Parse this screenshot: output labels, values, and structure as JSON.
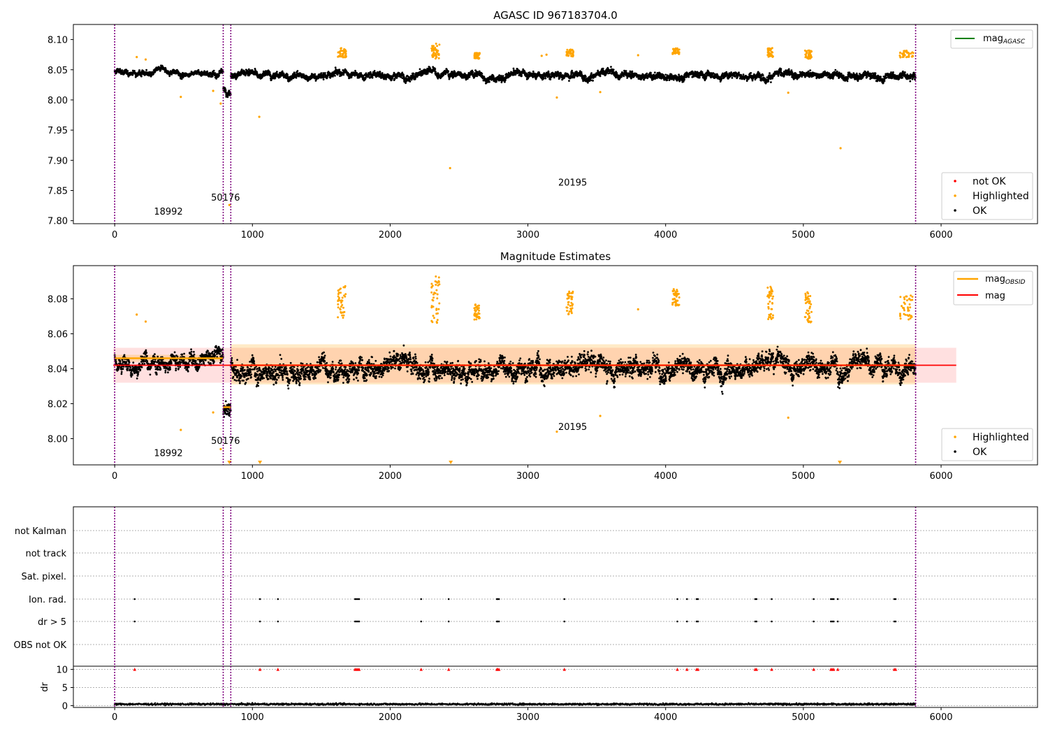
{
  "chart_data": [
    {
      "type": "scatter",
      "title": "AGASC ID 967183704.0",
      "xlim": [
        -300,
        6700
      ],
      "ylim": [
        7.795,
        8.125
      ],
      "xticks": [
        0,
        1000,
        2000,
        3000,
        4000,
        5000,
        6000
      ],
      "yticks": [
        7.8,
        7.85,
        7.9,
        7.95,
        8.0,
        8.05,
        8.1
      ],
      "ytick_labels": [
        "7.80",
        "7.85",
        "7.90",
        "7.95",
        "8.00",
        "8.05",
        "8.10"
      ],
      "obs_boundaries": [
        0,
        788,
        843,
        5815
      ],
      "obs_labels": [
        {
          "x": 285,
          "y": 7.81,
          "text": "18992"
        },
        {
          "x": 700,
          "y": 7.833,
          "text": "50176"
        },
        {
          "x": 3220,
          "y": 7.858,
          "text": "20195"
        }
      ],
      "line_legend": [
        {
          "name": "mag",
          "sub": "AGASC",
          "color": "#008000"
        }
      ],
      "point_legend": [
        {
          "name": "not OK",
          "color": "#ff0000"
        },
        {
          "name": "Highlighted",
          "color": "#ffa500"
        },
        {
          "name": "OK",
          "color": "#000000"
        }
      ],
      "series": [
        {
          "name": "OK",
          "color": "#000000",
          "segments": [
            {
              "x0": 0,
              "x1": 788,
              "level": 8.046,
              "noise": 0.006
            },
            {
              "x0": 788,
              "x1": 843,
              "level": 8.016,
              "noise": 0.006
            },
            {
              "x0": 843,
              "x1": 5815,
              "level": 8.041,
              "noise": 0.008
            }
          ]
        },
        {
          "name": "Highlighted",
          "color": "#ffa500",
          "clusters": [
            {
              "x0": 1620,
              "x1": 1680,
              "y0": 8.07,
              "y1": 8.086
            },
            {
              "x0": 2300,
              "x1": 2360,
              "y0": 8.068,
              "y1": 8.094
            },
            {
              "x0": 2610,
              "x1": 2650,
              "y0": 8.068,
              "y1": 8.078
            },
            {
              "x0": 3280,
              "x1": 3330,
              "y0": 8.072,
              "y1": 8.084
            },
            {
              "x0": 4050,
              "x1": 4100,
              "y0": 8.076,
              "y1": 8.086
            },
            {
              "x0": 4740,
              "x1": 4780,
              "y0": 8.07,
              "y1": 8.086
            },
            {
              "x0": 5010,
              "x1": 5060,
              "y0": 8.068,
              "y1": 8.084
            },
            {
              "x0": 5700,
              "x1": 5800,
              "y0": 8.07,
              "y1": 8.082
            }
          ],
          "points": [
            [
              160,
              8.071
            ],
            [
              225,
              8.067
            ],
            [
              480,
              8.005
            ],
            [
              715,
              8.015
            ],
            [
              770,
              7.994
            ],
            [
              833,
              7.826
            ],
            [
              1050,
              7.972
            ],
            [
              2435,
              7.887
            ],
            [
              3100,
              8.073
            ],
            [
              3135,
              8.075
            ],
            [
              3210,
              8.004
            ],
            [
              3525,
              8.013
            ],
            [
              3800,
              8.074
            ],
            [
              4890,
              8.012
            ],
            [
              5270,
              7.92
            ]
          ]
        }
      ]
    },
    {
      "type": "scatter",
      "title": "Magnitude Estimates",
      "xlim": [
        -300,
        6700
      ],
      "ylim": [
        7.985,
        8.099
      ],
      "xticks": [
        0,
        1000,
        2000,
        3000,
        4000,
        5000,
        6000
      ],
      "yticks": [
        8.0,
        8.02,
        8.04,
        8.06,
        8.08
      ],
      "ytick_labels": [
        "8.00",
        "8.02",
        "8.04",
        "8.06",
        "8.08"
      ],
      "obs_boundaries": [
        0,
        788,
        843,
        5815
      ],
      "obs_labels": [
        {
          "x": 285,
          "y": 7.99,
          "text": "18992"
        },
        {
          "x": 700,
          "y": 7.997,
          "text": "50176"
        },
        {
          "x": 3220,
          "y": 8.005,
          "text": "20195"
        }
      ],
      "mag": 8.042,
      "mag_band": [
        8.032,
        8.052
      ],
      "mag_obsid": [
        {
          "x0": 0,
          "x1": 788,
          "y": 8.046,
          "band": [
            8.044,
            8.048
          ]
        },
        {
          "x0": 788,
          "x1": 843,
          "y": 8.018,
          "band": [
            8.016,
            8.02
          ]
        },
        {
          "x0": 843,
          "x1": 5815,
          "y": 8.042,
          "band": [
            8.031,
            8.054
          ]
        }
      ],
      "line_legend": [
        {
          "name": "mag",
          "sub": "OBSID",
          "color": "#ffa500"
        },
        {
          "name": "mag",
          "sub": "",
          "color": "#ff0000"
        }
      ],
      "point_legend": [
        {
          "name": "Highlighted",
          "color": "#ffa500"
        },
        {
          "name": "OK",
          "color": "#000000"
        }
      ],
      "offscale_markers": [
        1055,
        2440,
        5265,
        833
      ],
      "series": [
        {
          "name": "OK",
          "color": "#000000",
          "segments": [
            {
              "x0": 0,
              "x1": 788,
              "level": 8.046,
              "noise": 0.006
            },
            {
              "x0": 788,
              "x1": 843,
              "level": 8.016,
              "noise": 0.006
            },
            {
              "x0": 843,
              "x1": 5815,
              "level": 8.041,
              "noise": 0.008
            }
          ]
        },
        {
          "name": "Highlighted",
          "color": "#ffa500",
          "clusters": [
            {
              "x0": 1620,
              "x1": 1680,
              "y0": 8.068,
              "y1": 8.088
            },
            {
              "x0": 2300,
              "x1": 2360,
              "y0": 8.066,
              "y1": 8.094
            },
            {
              "x0": 2610,
              "x1": 2650,
              "y0": 8.068,
              "y1": 8.077
            },
            {
              "x0": 3280,
              "x1": 3330,
              "y0": 8.071,
              "y1": 8.085
            },
            {
              "x0": 4050,
              "x1": 4100,
              "y0": 8.076,
              "y1": 8.086
            },
            {
              "x0": 4740,
              "x1": 4780,
              "y0": 8.068,
              "y1": 8.087
            },
            {
              "x0": 5010,
              "x1": 5060,
              "y0": 8.066,
              "y1": 8.085
            },
            {
              "x0": 5700,
              "x1": 5800,
              "y0": 8.068,
              "y1": 8.082
            }
          ],
          "points": [
            [
              160,
              8.071
            ],
            [
              225,
              8.067
            ],
            [
              480,
              8.005
            ],
            [
              715,
              8.015
            ],
            [
              770,
              7.994
            ],
            [
              3210,
              8.004
            ],
            [
              3525,
              8.013
            ],
            [
              3800,
              8.074
            ],
            [
              4890,
              8.012
            ]
          ]
        }
      ]
    },
    {
      "type": "scatter",
      "title": "",
      "xlim": [
        -300,
        6700
      ],
      "obs_boundaries": [
        0,
        788,
        843,
        5815
      ],
      "flag_rows": [
        "not Kalman",
        "not track",
        "Sat. pixel.",
        "Ion. rad.",
        "dr > 5",
        "OBS not OK"
      ],
      "flag_events": [
        {
          "row": "Ion. rad.",
          "x": [
            145,
            1055,
            1185,
            1745,
            1755,
            1765,
            1775,
            2225,
            2425,
            2775,
            2780,
            2790,
            3265,
            4085,
            4155,
            4225,
            4235,
            4650,
            4660,
            4770,
            5075,
            5200,
            5210,
            5220,
            5250,
            5660,
            5670
          ]
        },
        {
          "row": "dr > 5",
          "x": [
            145,
            1055,
            1185,
            1745,
            1755,
            1765,
            1775,
            2225,
            2425,
            2775,
            2780,
            2790,
            3265,
            4085,
            4155,
            4225,
            4235,
            4650,
            4660,
            4770,
            5075,
            5200,
            5210,
            5220,
            5250,
            5660,
            5670
          ]
        }
      ],
      "dr_ylabel": "dr",
      "dr_ylim": [
        -0.5,
        10.5
      ],
      "dr_yticks": [
        0,
        5,
        10
      ],
      "dr_ytick_labels": [
        "0",
        "5",
        "10"
      ],
      "dr_base": {
        "level": 0.4,
        "noise": 0.25
      },
      "dr_clipped_x": [
        145,
        1055,
        1185,
        1745,
        1755,
        1765,
        1775,
        2225,
        2425,
        2775,
        2780,
        2790,
        3265,
        4085,
        4155,
        4225,
        4235,
        4650,
        4660,
        4770,
        5075,
        5200,
        5210,
        5220,
        5250,
        5660,
        5670
      ],
      "xticks": [
        0,
        1000,
        2000,
        3000,
        4000,
        5000,
        6000
      ]
    }
  ]
}
